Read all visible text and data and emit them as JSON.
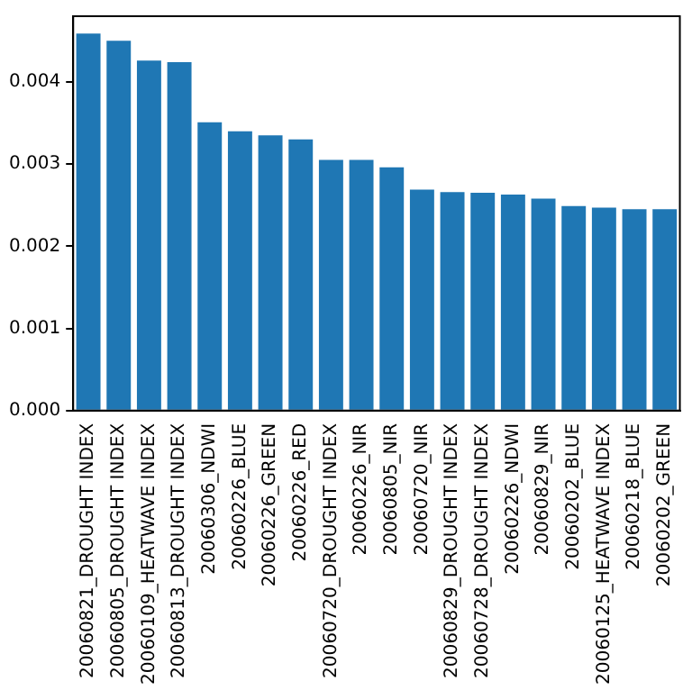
{
  "chart_data": {
    "type": "bar",
    "categories": [
      "20060821_DROUGHT INDEX",
      "20060805_DROUGHT INDEX",
      "20060109_HEATWAVE INDEX",
      "20060813_DROUGHT INDEX",
      "20060306_NDWI",
      "20060226_BLUE",
      "20060226_GREEN",
      "20060226_RED",
      "20060720_DROUGHT INDEX",
      "20060226_NIR",
      "20060805_NIR",
      "20060720_NIR",
      "20060829_DROUGHT INDEX",
      "20060728_DROUGHT INDEX",
      "20060226_NDWI",
      "20060829_NIR",
      "20060202_BLUE",
      "20060125_HEATWAVE INDEX",
      "20060218_BLUE",
      "20060202_GREEN"
    ],
    "values": [
      0.00459,
      0.0045,
      0.00426,
      0.00424,
      0.00351,
      0.0034,
      0.00335,
      0.0033,
      0.00305,
      0.00305,
      0.00296,
      0.00269,
      0.00266,
      0.00265,
      0.00263,
      0.00258,
      0.00249,
      0.00247,
      0.00245,
      0.00245
    ],
    "color": "#1f77b4",
    "ylim": [
      0,
      0.0048
    ],
    "yticks": [
      {
        "value": 0,
        "label": "0.000"
      },
      {
        "value": 0.001,
        "label": "0.001"
      },
      {
        "value": 0.002,
        "label": "0.002"
      },
      {
        "value": 0.003,
        "label": "0.003"
      },
      {
        "value": 0.004,
        "label": "0.004"
      }
    ],
    "grid": false
  }
}
